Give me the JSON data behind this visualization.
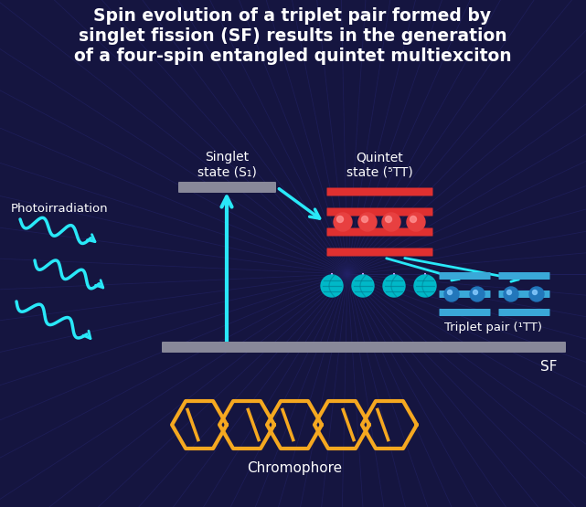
{
  "title_line1": "Spin evolution of a triplet pair formed by",
  "title_line2": "singlet fission (SF) results in the generation",
  "title_line3": "of a four-spin entangled quintet multiexciton",
  "bg_color": "#151540",
  "text_color": "#ffffff",
  "orange_color": "#f5a820",
  "cyan_color": "#00bcd4",
  "cyan_light": "#29e8f8",
  "red_color": "#e03030",
  "blue_bar_color": "#3aa8d8",
  "gray_bar_color": "#888899",
  "label_singlet": "Singlet\nstate (S₁)",
  "label_quintet": "Quintet\nstate (⁵TT)",
  "label_triplet": "Triplet pair (¹TT)",
  "label_photo": "Photoirradiation",
  "label_sf": "SF",
  "label_chromophore": "Chromophore"
}
